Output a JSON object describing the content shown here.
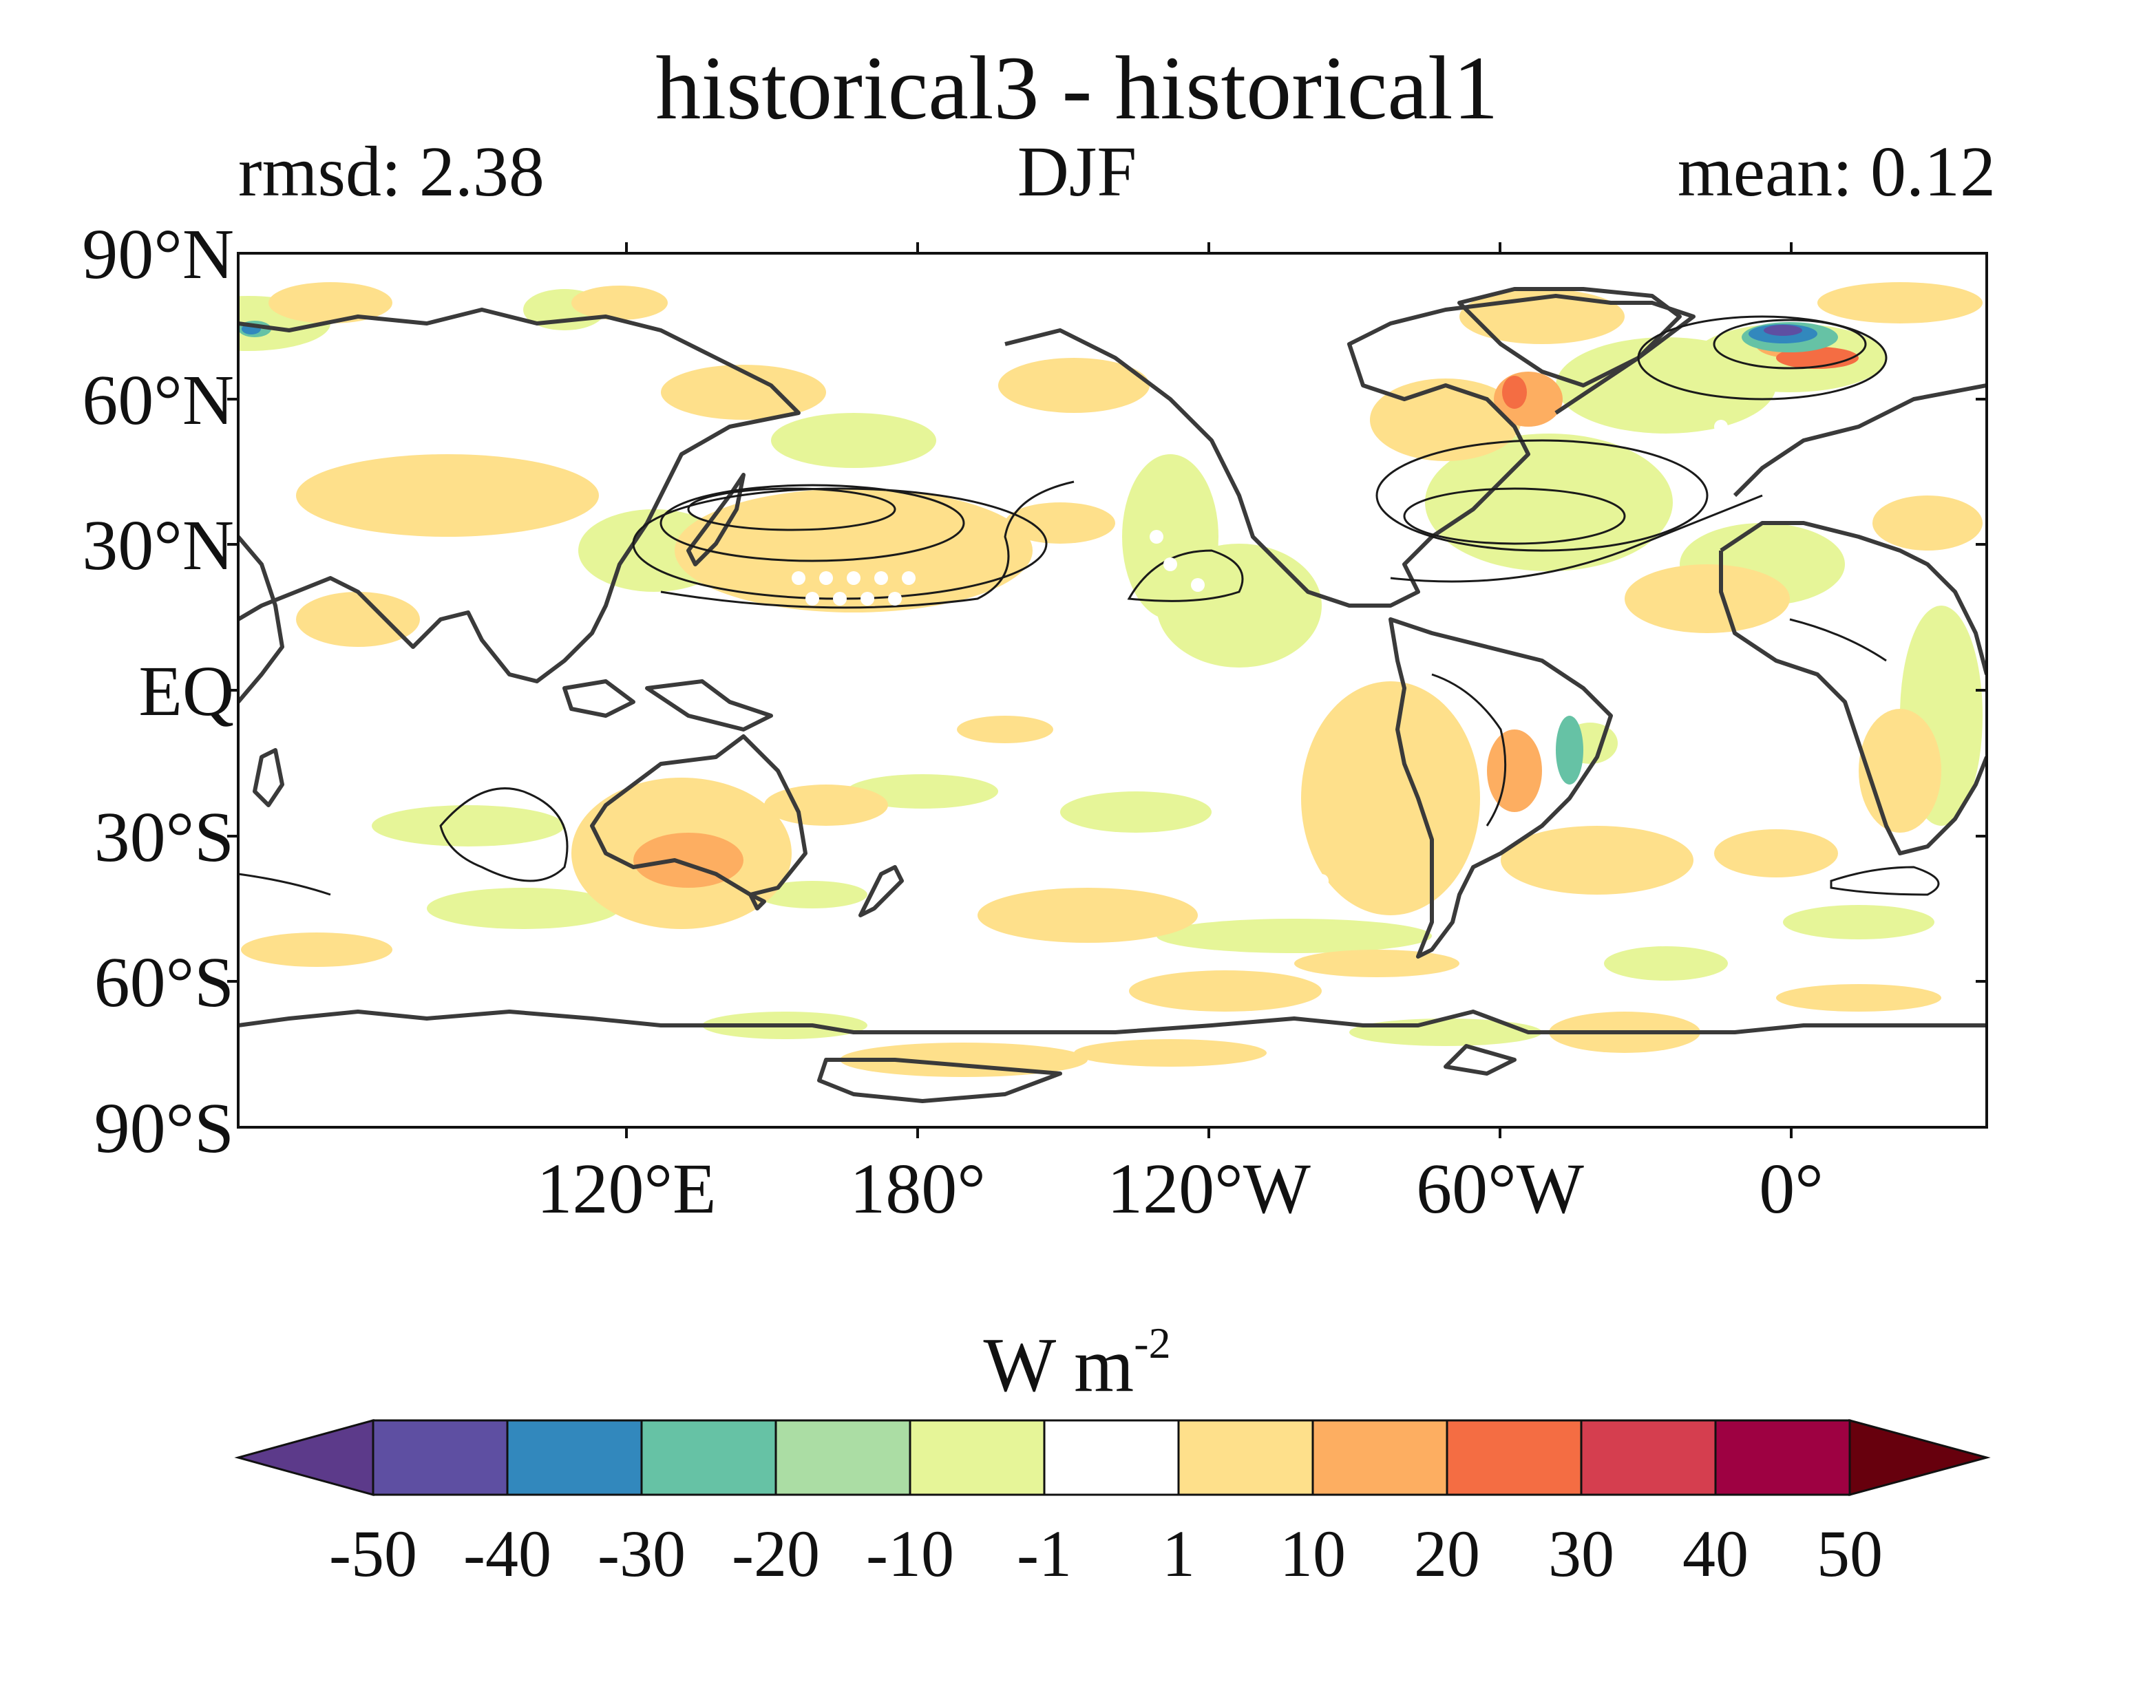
{
  "title": "historical3 - historical1",
  "subtitle": {
    "left": "rmsd: 2.38",
    "center": "DJF",
    "right": "mean: 0.12"
  },
  "lat_labels": [
    "90°N",
    "60°N",
    "30°N",
    "EQ",
    "30°S",
    "60°S",
    "90°S"
  ],
  "lon_labels": [
    "120°E",
    "180°",
    "120°W",
    "60°W",
    "0°"
  ],
  "colorbar": {
    "unit_base": "W m",
    "unit_exp": "-2",
    "ticks": [
      "-50",
      "-40",
      "-30",
      "-20",
      "-10",
      "-1",
      "1",
      "10",
      "20",
      "30",
      "40",
      "50"
    ],
    "colors": [
      "#5e4fa2",
      "#3288bd",
      "#66c2a5",
      "#abdda4",
      "#e6f598",
      "#ffffff",
      "#fee08b",
      "#fdae61",
      "#f46d43",
      "#d53e4f",
      "#9e0142"
    ],
    "under_color": "#5c3a8a",
    "over_color": "#67000d"
  }
}
